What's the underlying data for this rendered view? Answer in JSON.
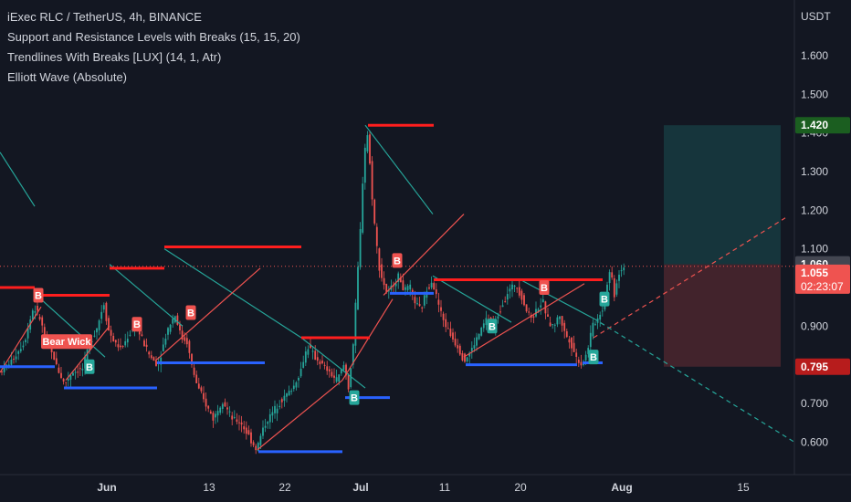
{
  "header": {
    "symbol_line": "iExec RLC / TetherUS, 4h, BINANCE",
    "indicators": [
      "Support and Resistance Levels with Breaks (15, 15, 20)",
      "Trendlines With Breaks [LUX] (14, 1, Atr)",
      "Elliott Wave (Absolute)"
    ]
  },
  "colors": {
    "background": "#131722",
    "up": "#26a69a",
    "down": "#ef5350",
    "resistance": "#ff1e1e",
    "support": "#2962ff",
    "trend_up": "#ef5350",
    "trend_down": "#26a69a",
    "text": "#d1d4dc"
  },
  "chart_data": {
    "type": "candlestick",
    "quote_currency": "USDT",
    "x_tick_labels": [
      "Jun",
      "13",
      "22",
      "Jul",
      "11",
      "20",
      "Aug",
      "15"
    ],
    "y_tick_labels": [
      "0.600",
      "0.700",
      "0.800",
      "0.900",
      "1.000",
      "1.100",
      "1.200",
      "1.300",
      "1.400",
      "1.500",
      "1.600"
    ],
    "ylim": [
      0.52,
      1.72
    ],
    "current_price": "1.055",
    "countdown": "02:23:07",
    "position_tool": {
      "target_label": "1.420",
      "target": 1.42,
      "entry_label": "1.060",
      "entry": 1.06,
      "stop_label": "0.795",
      "stop": 0.795
    },
    "path": [
      [
        0,
        0.78
      ],
      [
        14,
        0.81
      ],
      [
        28,
        0.86
      ],
      [
        38,
        0.95
      ],
      [
        45,
        0.92
      ],
      [
        52,
        0.86
      ],
      [
        60,
        0.82
      ],
      [
        66,
        0.78
      ],
      [
        72,
        0.75
      ],
      [
        80,
        0.78
      ],
      [
        92,
        0.79
      ],
      [
        100,
        0.86
      ],
      [
        108,
        0.9
      ],
      [
        115,
        0.96
      ],
      [
        120,
        0.89
      ],
      [
        126,
        0.86
      ],
      [
        134,
        0.84
      ],
      [
        143,
        0.88
      ],
      [
        150,
        0.9
      ],
      [
        158,
        0.86
      ],
      [
        166,
        0.82
      ],
      [
        174,
        0.8
      ],
      [
        180,
        0.85
      ],
      [
        186,
        0.9
      ],
      [
        193,
        0.93
      ],
      [
        200,
        0.87
      ],
      [
        206,
        0.86
      ],
      [
        212,
        0.79
      ],
      [
        218,
        0.74
      ],
      [
        226,
        0.7
      ],
      [
        235,
        0.66
      ],
      [
        245,
        0.71
      ],
      [
        255,
        0.66
      ],
      [
        265,
        0.65
      ],
      [
        275,
        0.61
      ],
      [
        282,
        0.58
      ],
      [
        290,
        0.64
      ],
      [
        298,
        0.67
      ],
      [
        306,
        0.7
      ],
      [
        314,
        0.72
      ],
      [
        322,
        0.74
      ],
      [
        330,
        0.78
      ],
      [
        338,
        0.85
      ],
      [
        346,
        0.82
      ],
      [
        354,
        0.8
      ],
      [
        362,
        0.78
      ],
      [
        370,
        0.76
      ],
      [
        378,
        0.8
      ],
      [
        383,
        0.74
      ],
      [
        388,
        0.85
      ],
      [
        392,
        1.0
      ],
      [
        396,
        1.15
      ],
      [
        400,
        1.35
      ],
      [
        404,
        1.4
      ],
      [
        408,
        1.26
      ],
      [
        412,
        1.15
      ],
      [
        416,
        1.06
      ],
      [
        420,
        1.02
      ],
      [
        426,
        0.98
      ],
      [
        432,
        1.01
      ],
      [
        438,
        1.03
      ],
      [
        444,
        0.99
      ],
      [
        450,
        1.0
      ],
      [
        456,
        0.96
      ],
      [
        462,
        0.94
      ],
      [
        468,
        0.99
      ],
      [
        474,
        1.02
      ],
      [
        480,
        0.97
      ],
      [
        486,
        0.92
      ],
      [
        494,
        0.88
      ],
      [
        502,
        0.85
      ],
      [
        510,
        0.81
      ],
      [
        518,
        0.84
      ],
      [
        526,
        0.88
      ],
      [
        534,
        0.92
      ],
      [
        542,
        0.9
      ],
      [
        550,
        0.95
      ],
      [
        558,
        0.99
      ],
      [
        566,
        1.01
      ],
      [
        572,
        0.98
      ],
      [
        578,
        0.94
      ],
      [
        584,
        0.92
      ],
      [
        590,
        0.95
      ],
      [
        596,
        0.96
      ],
      [
        602,
        0.91
      ],
      [
        608,
        0.9
      ],
      [
        614,
        0.93
      ],
      [
        620,
        0.88
      ],
      [
        626,
        0.86
      ],
      [
        632,
        0.82
      ],
      [
        638,
        0.8
      ],
      [
        644,
        0.83
      ],
      [
        650,
        0.9
      ],
      [
        656,
        0.92
      ],
      [
        662,
        0.95
      ],
      [
        666,
        1.01
      ],
      [
        670,
        1.05
      ],
      [
        674,
        0.98
      ],
      [
        678,
        1.03
      ],
      [
        682,
        1.05
      ],
      [
        685,
        1.055
      ]
    ],
    "resistance_lines": [
      [
        0,
        38,
        1.0
      ],
      [
        38,
        120,
        0.98
      ],
      [
        120,
        180,
        1.05
      ],
      [
        180,
        330,
        1.105
      ],
      [
        330,
        405,
        0.87
      ],
      [
        403,
        475,
        1.42
      ],
      [
        475,
        660,
        1.02
      ]
    ],
    "support_lines": [
      [
        0,
        60,
        0.795
      ],
      [
        70,
        172,
        0.74
      ],
      [
        172,
        290,
        0.805
      ],
      [
        283,
        375,
        0.575
      ],
      [
        378,
        427,
        0.715
      ],
      [
        427,
        475,
        0.985
      ],
      [
        510,
        632,
        0.8
      ],
      [
        638,
        660,
        0.805
      ]
    ],
    "trend_lines_down": [
      [
        [
          0,
          1.35
        ],
        [
          38,
          1.21
        ]
      ],
      [
        [
          40,
          0.98
        ],
        [
          115,
          0.82
        ]
      ],
      [
        [
          120,
          1.06
        ],
        [
          200,
          0.9
        ]
      ],
      [
        [
          180,
          1.1
        ],
        [
          330,
          0.87
        ]
      ],
      [
        [
          330,
          0.87
        ],
        [
          400,
          0.74
        ]
      ],
      [
        [
          400,
          1.42
        ],
        [
          474,
          1.19
        ]
      ],
      [
        [
          474,
          1.03
        ],
        [
          560,
          0.91
        ]
      ],
      [
        [
          570,
          1.02
        ],
        [
          650,
          0.92
        ]
      ]
    ],
    "trend_lines_up": [
      [
        [
          0,
          0.78
        ],
        [
          45,
          0.95
        ]
      ],
      [
        [
          72,
          0.76
        ],
        [
          120,
          0.9
        ]
      ],
      [
        [
          170,
          0.81
        ],
        [
          285,
          1.05
        ]
      ],
      [
        [
          282,
          0.58
        ],
        [
          375,
          0.76
        ]
      ],
      [
        [
          375,
          0.76
        ],
        [
          430,
          0.97
        ]
      ],
      [
        [
          420,
          0.98
        ],
        [
          508,
          1.19
        ]
      ],
      [
        [
          508,
          0.82
        ],
        [
          640,
          1.01
        ]
      ]
    ],
    "projection_up": [
      [
        650,
        0.87
      ],
      [
        860,
        1.18
      ]
    ],
    "projection_down": [
      [
        650,
        0.92
      ],
      [
        870,
        0.6
      ]
    ],
    "markers": [
      {
        "x": 42,
        "y": 0.98,
        "label": "B",
        "kind": "bear"
      },
      {
        "x": 73,
        "y": 0.86,
        "label": "Bear Wick",
        "kind": "bear-wide"
      },
      {
        "x": 98,
        "y": 0.795,
        "label": "B",
        "kind": "bull"
      },
      {
        "x": 150,
        "y": 0.905,
        "label": "B",
        "kind": "bear"
      },
      {
        "x": 209,
        "y": 0.935,
        "label": "B",
        "kind": "bear"
      },
      {
        "x": 388,
        "y": 0.715,
        "label": "B",
        "kind": "bull"
      },
      {
        "x": 435,
        "y": 1.07,
        "label": "B",
        "kind": "bear"
      },
      {
        "x": 539,
        "y": 0.9,
        "label": "B",
        "kind": "bull"
      },
      {
        "x": 596,
        "y": 1.0,
        "label": "B",
        "kind": "bear"
      },
      {
        "x": 650,
        "y": 0.82,
        "label": "B",
        "kind": "bull"
      },
      {
        "x": 662,
        "y": 0.97,
        "label": "B",
        "kind": "bull"
      }
    ]
  }
}
